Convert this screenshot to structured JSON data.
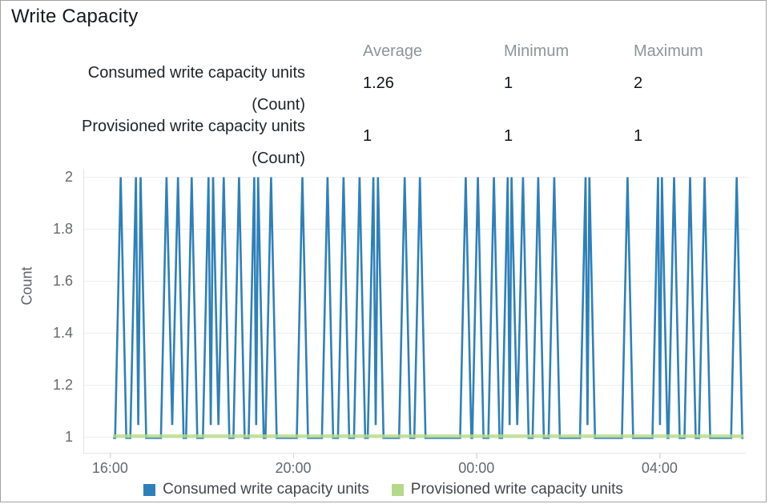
{
  "chart_data": {
    "type": "line",
    "title": "Write Capacity",
    "ylabel": "Count",
    "xlabel": "",
    "ylim": [
      1,
      2
    ],
    "yticks": [
      2,
      1.8,
      1.6,
      1.4,
      1.2,
      1
    ],
    "xticks": [
      "16:00",
      "20:00",
      "00:00",
      "04:00"
    ],
    "x_axis_window": {
      "start": "15:25",
      "end": "05:55"
    },
    "grid": true,
    "legend_position": "bottom",
    "series": [
      {
        "name": "Consumed write capacity units",
        "color": "#2e80b9",
        "style": "spike-line",
        "baseline_value": 1,
        "spike_value": 2,
        "data_start": "16:04",
        "data_end": "05:50",
        "spike_times": [
          "16:14",
          "16:34",
          "16:40",
          "17:14",
          "17:29",
          "17:47",
          "18:09",
          "18:15",
          "18:29",
          "18:49",
          "19:09",
          "19:14",
          "19:31",
          "20:12",
          "20:45",
          "21:06",
          "21:27",
          "21:45",
          "21:51",
          "22:26",
          "22:46",
          "23:46",
          "00:02",
          "00:23",
          "00:41",
          "00:46",
          "01:01",
          "01:21",
          "01:42",
          "02:23",
          "02:28",
          "03:18",
          "03:58",
          "04:03",
          "04:19",
          "04:40",
          "04:59",
          "05:41"
        ]
      },
      {
        "name": "Provisioned write capacity units",
        "color": "#b5d98b",
        "style": "constant-line",
        "value": 1,
        "data_start": "16:04",
        "data_end": "05:50"
      }
    ]
  },
  "summary": {
    "columns": [
      "Average",
      "Minimum",
      "Maximum"
    ],
    "rows": [
      {
        "label": "Consumed write capacity units",
        "sublabel": "(Count)",
        "average": "1.26",
        "minimum": "1",
        "maximum": "2"
      },
      {
        "label": "Provisioned write capacity units",
        "sublabel": "(Count)",
        "average": "1",
        "minimum": "1",
        "maximum": "1"
      }
    ]
  }
}
